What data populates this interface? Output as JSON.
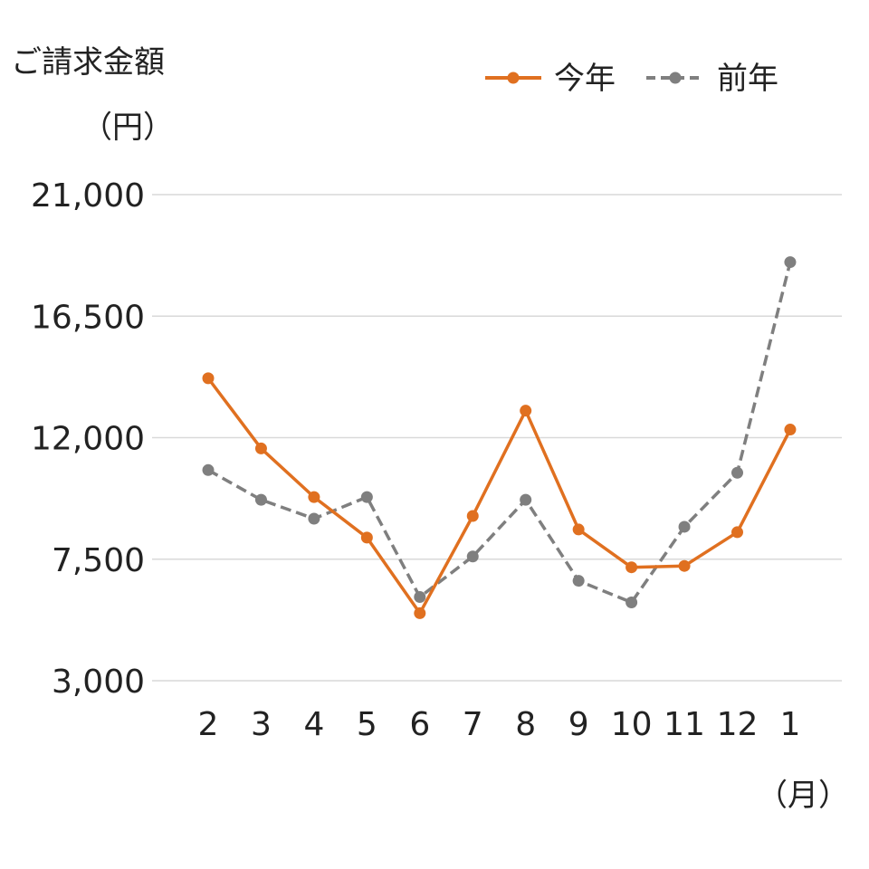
{
  "chart_data": {
    "type": "line",
    "ylabel_line1": "ご請求金額",
    "ylabel_line2": "（円）",
    "xlabel": "（月）",
    "categories": [
      "2",
      "3",
      "4",
      "5",
      "6",
      "7",
      "8",
      "9",
      "10",
      "11",
      "12",
      "1"
    ],
    "ylim": [
      3000,
      21000
    ],
    "yticks": [
      3000,
      7500,
      12000,
      16500,
      21000
    ],
    "ytick_labels": [
      "3,000",
      "7,500",
      "12,000",
      "16,500",
      "21,000"
    ],
    "grid": true,
    "legend_position": "top-right",
    "series": [
      {
        "name": "今年",
        "color": "#e07020",
        "style": "solid",
        "values": [
          14200,
          11600,
          9800,
          8300,
          5500,
          9100,
          13000,
          8600,
          7200,
          7250,
          8500,
          12300
        ]
      },
      {
        "name": "前年",
        "color": "#7f7f7f",
        "style": "dashed",
        "values": [
          10800,
          9700,
          9000,
          9800,
          6100,
          7600,
          9700,
          6700,
          5900,
          8700,
          10700,
          18500
        ]
      }
    ]
  }
}
